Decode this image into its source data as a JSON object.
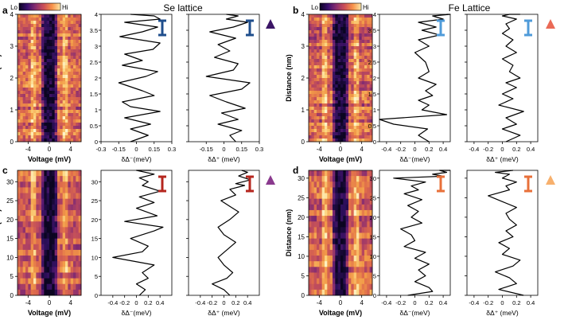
{
  "colors": {
    "purple_dark": "#3b1566",
    "purple_mid": "#8a3a8e",
    "orange_red": "#ea6a56",
    "peach": "#f7b06d",
    "bar_dark_blue": "#1f4e8c",
    "bar_light_blue": "#4f9bd9",
    "bar_dark_red": "#b5261e",
    "bar_orange": "#e8703a",
    "cmap": [
      "#0b0521",
      "#2d0f5b",
      "#5b1a72",
      "#8a2f6f",
      "#b9475f",
      "#de6a4c",
      "#f29b48",
      "#fcd27a",
      "#fdf3c8"
    ]
  },
  "chart_data": [
    {
      "panel": "a",
      "title": "Se lattice",
      "colorbar": {
        "low": "Lo",
        "high": "Hi"
      },
      "heatmap": {
        "type": "heatmap",
        "xlabel": "Voltage (mV)",
        "ylabel": "Distance (nm)",
        "xticks": [
          "-4",
          "0",
          "4"
        ],
        "yticks": [
          "0",
          "1",
          "2",
          "3",
          "4"
        ],
        "xlim": [
          -6,
          6
        ],
        "ylim": [
          0,
          4
        ]
      },
      "line_minus": {
        "type": "line",
        "xlabel": "δΔ⁻(meV)",
        "xticks": [
          "-0.3",
          "-0.15",
          "0",
          "0.15",
          "0.3"
        ],
        "yticks": [
          "0",
          "0.5",
          "1",
          "1.5",
          "2",
          "2.5",
          "3",
          "3.5",
          "4"
        ],
        "xlim": [
          -0.3,
          0.3
        ],
        "ylim": [
          0,
          4
        ],
        "x": [
          -0.05,
          0.1,
          -0.05,
          0.12,
          -0.1,
          0.2,
          -0.05,
          -0.12,
          0.15,
          0.05,
          -0.15,
          0.08,
          0.18,
          -0.12,
          0.05,
          -0.1,
          0.14,
          0.2,
          -0.14,
          0.05,
          0.18,
          -0.1,
          0.2,
          0.15,
          -0.05
        ],
        "y": [
          0,
          0.2,
          0.4,
          0.55,
          0.75,
          0.95,
          1.1,
          1.25,
          1.45,
          1.6,
          1.85,
          2.05,
          2.2,
          2.4,
          2.55,
          2.75,
          2.9,
          3.1,
          3.3,
          3.45,
          3.6,
          3.75,
          3.85,
          3.95,
          4.0
        ],
        "error_bar": "I"
      },
      "line_plus": {
        "type": "line",
        "xlabel": "δΔ⁺ (meV)",
        "xticks": [
          "-0.15",
          "0",
          "0.15",
          "0.3"
        ],
        "yticks": [
          "0",
          "0.5",
          "1",
          "1.5",
          "2",
          "2.5",
          "3",
          "3.5",
          "4"
        ],
        "xlim": [
          -0.3,
          0.3
        ],
        "ylim": [
          0,
          4
        ],
        "x": [
          0.1,
          0.05,
          0.15,
          -0.05,
          0.12,
          -0.02,
          0.18,
          0.02,
          -0.12,
          0.15,
          0.22,
          -0.15,
          0.08,
          0.12,
          -0.08,
          0.05,
          -0.05,
          0.1,
          -0.12,
          0.08,
          0.2,
          0.02,
          0.12,
          0.02
        ],
        "y": [
          0,
          0.2,
          0.35,
          0.55,
          0.7,
          0.9,
          1.05,
          1.25,
          1.45,
          1.65,
          1.85,
          2.05,
          2.25,
          2.45,
          2.65,
          2.85,
          3.05,
          3.25,
          3.45,
          3.6,
          3.75,
          3.85,
          3.95,
          4.0
        ],
        "error_bar": "I"
      }
    },
    {
      "panel": "b",
      "title": "Fe Lattice",
      "colorbar": {
        "low": "Lo",
        "high": "Hi"
      },
      "heatmap": {
        "type": "heatmap",
        "xlabel": "Voltage (mV)",
        "ylabel": "Distance (nm)",
        "xticks": [
          "-4",
          "0",
          "4"
        ],
        "yticks": [
          "0",
          "1",
          "2",
          "3",
          "4"
        ],
        "xlim": [
          -6,
          6
        ],
        "ylim": [
          0,
          4
        ]
      },
      "line_minus": {
        "type": "line",
        "xlabel": "δΔ⁻(meV)",
        "xticks": [
          "-0.4",
          "-0.2",
          "0",
          "0.2",
          "0.4"
        ],
        "yticks": [
          "0",
          "0.5",
          "1",
          "1.5",
          "2",
          "2.5",
          "3",
          "3.5",
          "4"
        ],
        "xlim": [
          -0.5,
          0.5
        ],
        "ylim": [
          0,
          4
        ],
        "x": [
          0.2,
          0.05,
          0.18,
          -0.3,
          -0.5,
          0.45,
          0.1,
          0.2,
          0.05,
          0.25,
          0.15,
          0.3,
          0.05,
          0.2,
          0.15,
          0.0,
          0.2,
          0.05,
          0.35,
          0.1,
          0.3,
          0.05,
          0.4,
          0.25,
          0.5,
          0.45
        ],
        "y": [
          0,
          0.2,
          0.4,
          0.55,
          0.7,
          0.85,
          1.0,
          1.15,
          1.3,
          1.45,
          1.6,
          1.8,
          2.0,
          2.2,
          2.5,
          2.8,
          3.0,
          3.2,
          3.35,
          3.5,
          3.6,
          3.75,
          3.85,
          3.95,
          4.0,
          4.05
        ],
        "error_bar": "I"
      },
      "line_plus": {
        "type": "line",
        "xlabel": "δΔ⁺ (meV)",
        "xticks": [
          "-0.4",
          "-0.2",
          "0",
          "0.2",
          "0.4"
        ],
        "yticks": [
          "0",
          "0.5",
          "1",
          "1.5",
          "2",
          "2.5",
          "3",
          "3.5",
          "4"
        ],
        "xlim": [
          -0.5,
          0.5
        ],
        "ylim": [
          0,
          4
        ],
        "x": [
          0.05,
          0.25,
          0.0,
          0.2,
          0.05,
          0.3,
          -0.05,
          0.15,
          0.0,
          0.2,
          0.05,
          0.25,
          0.1,
          0.15,
          0.0,
          0.2,
          0.05,
          0.15,
          0.0,
          0.1,
          0.05,
          0.2,
          0.0,
          0.1,
          0.25
        ],
        "y": [
          0,
          0.2,
          0.4,
          0.55,
          0.75,
          0.95,
          1.15,
          1.35,
          1.5,
          1.7,
          1.85,
          2.0,
          2.2,
          2.4,
          2.6,
          2.8,
          3.0,
          3.2,
          3.4,
          3.55,
          3.7,
          3.85,
          3.95,
          4.0,
          4.05
        ],
        "error_bar": "I"
      }
    },
    {
      "panel": "c",
      "heatmap": {
        "type": "heatmap",
        "xlabel": "Voltage (mV)",
        "ylabel": "Distance (nm)",
        "xticks": [
          "-4",
          "0",
          "4"
        ],
        "yticks": [
          "0",
          "5",
          "10",
          "15",
          "20",
          "25",
          "30"
        ],
        "xlim": [
          -6,
          6
        ],
        "ylim": [
          0,
          33
        ]
      },
      "line_minus": {
        "type": "line",
        "xlabel": "δΔ⁻(meV)",
        "xticks": [
          "-0.4",
          "-0.2",
          "0",
          "0.2",
          "0.4"
        ],
        "yticks": [
          "0",
          "5",
          "10",
          "15",
          "20",
          "25",
          "30"
        ],
        "xlim": [
          -0.6,
          0.6
        ],
        "ylim": [
          0,
          33
        ],
        "x": [
          0.05,
          0.15,
          0.0,
          0.2,
          0.1,
          0.3,
          -0.4,
          0.1,
          0.2,
          -0.1,
          0.3,
          0.45,
          -0.2,
          0.35,
          0.0,
          0.3,
          0.05,
          0.4,
          0.1,
          0.2,
          0.05,
          0.3,
          0.0,
          0.25
        ],
        "y": [
          0,
          1.5,
          3,
          4.5,
          6,
          8,
          10,
          11.5,
          13,
          15,
          17,
          18,
          19.5,
          21,
          23,
          24.5,
          26,
          27.5,
          29,
          30,
          31,
          32,
          33,
          33
        ],
        "error_bar": "I"
      },
      "line_plus": {
        "type": "line",
        "xlabel": "δΔ⁺ (meV)",
        "xticks": [
          "-0.4",
          "-0.2",
          "0",
          "0.2",
          "0.4"
        ],
        "yticks": [
          "0",
          "5",
          "10",
          "15",
          "20",
          "25",
          "30"
        ],
        "xlim": [
          -0.6,
          0.6
        ],
        "ylim": [
          0,
          33
        ],
        "x": [
          0.1,
          0.0,
          -0.2,
          0.05,
          0.15,
          0.0,
          -0.1,
          0.05,
          0.2,
          0.0,
          -0.1,
          0.1,
          0.25,
          0.1,
          -0.05,
          0.2,
          0.1,
          0.35,
          0.2,
          0.45,
          0.25,
          0.4,
          0.3
        ],
        "y": [
          0,
          1.5,
          3,
          4.5,
          6,
          8,
          10,
          12,
          14,
          16,
          18,
          20,
          22,
          23.5,
          25,
          26.5,
          28,
          29,
          29.5,
          30.5,
          31.5,
          32.5,
          33
        ],
        "error_bar": "I"
      }
    },
    {
      "panel": "d",
      "heatmap": {
        "type": "heatmap",
        "xlabel": "Voltage (mV)",
        "ylabel": "Distance (nm)",
        "xticks": [
          "-4",
          "0",
          "4"
        ],
        "yticks": [
          "0",
          "5",
          "10",
          "15",
          "20",
          "25",
          "30"
        ],
        "xlim": [
          -6,
          6
        ],
        "ylim": [
          0,
          32
        ]
      },
      "line_minus": {
        "type": "line",
        "xlabel": "δΔ⁻(meV)",
        "xticks": [
          "-0.4",
          "-0.2",
          "0",
          "0.2",
          "0.4"
        ],
        "yticks": [
          "0",
          "5",
          "10",
          "15",
          "20",
          "25",
          "30"
        ],
        "xlim": [
          -0.5,
          0.5
        ],
        "ylim": [
          0,
          32
        ],
        "x": [
          -0.1,
          0.25,
          0.2,
          0.0,
          0.15,
          0.05,
          0.2,
          0.0,
          0.15,
          -0.15,
          0.0,
          -0.05,
          -0.2,
          0.1,
          -0.05,
          0.05,
          -0.1,
          0.1,
          -0.15,
          0.05,
          -0.05,
          0.15,
          -0.3,
          0.4,
          0.25,
          0.45,
          0.35,
          0.5
        ],
        "y": [
          0,
          1,
          2,
          3.5,
          5,
          6.5,
          8,
          9.5,
          11,
          12.5,
          14,
          15.5,
          17,
          18.5,
          20,
          21.5,
          23,
          24.5,
          26,
          27,
          28,
          29,
          30,
          30.5,
          31,
          31.5,
          32,
          32.5
        ],
        "error_bar": "I"
      },
      "line_plus": {
        "type": "line",
        "xlabel": "δΔ⁺ (meV)",
        "xticks": [
          "-0.4",
          "-0.2",
          "0",
          "0.2",
          "0.4"
        ],
        "yticks": [
          "0",
          "5",
          "10",
          "15",
          "20",
          "25",
          "30"
        ],
        "xlim": [
          -0.5,
          0.5
        ],
        "ylim": [
          0,
          32
        ],
        "x": [
          0.3,
          -0.05,
          0.2,
          0.1,
          -0.1,
          0.15,
          0.25,
          0.0,
          0.1,
          -0.05,
          0.15,
          0.05,
          0.2,
          0.1,
          0.05,
          0.2,
          0.0,
          -0.2,
          0.1,
          0.05,
          0.2,
          0.0,
          0.1,
          -0.1,
          0.15
        ],
        "y": [
          0,
          1.5,
          3,
          4.5,
          6,
          7.5,
          9,
          10.5,
          12,
          13.5,
          15,
          16.5,
          18,
          19.5,
          21,
          22.5,
          24,
          25.5,
          27,
          28,
          29,
          30,
          31,
          31.5,
          32
        ],
        "error_bar": "I"
      }
    }
  ]
}
